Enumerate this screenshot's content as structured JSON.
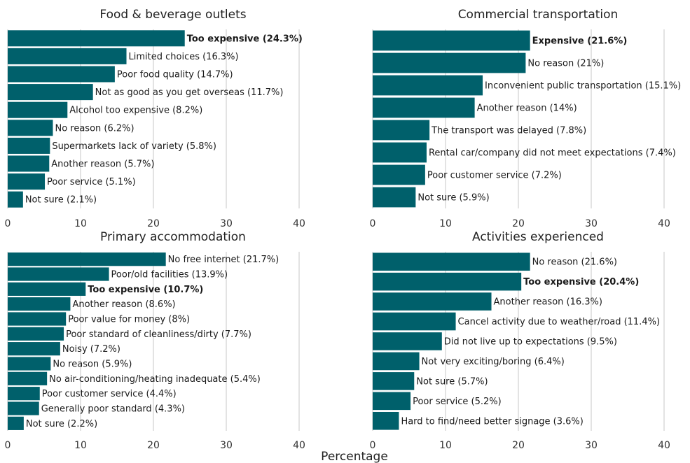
{
  "chart_data": [
    {
      "type": "bar",
      "orientation": "horizontal",
      "title": "Food & beverage outlets",
      "xlim": [
        0,
        40
      ],
      "xticks": [
        0,
        10,
        20,
        30,
        40
      ],
      "grid": true,
      "bar_color": "#00606B",
      "categories": [
        "Too expensive (24.3%)",
        "Limited choices (16.3%)",
        "Poor food quality (14.7%)",
        "Not as good as you get overseas (11.7%)",
        "Alcohol too expensive (8.2%)",
        "No reason (6.2%)",
        "Supermarkets lack of variety (5.8%)",
        "Another reason (5.7%)",
        "Poor service (5.1%)",
        "Not sure (2.1%)"
      ],
      "values": [
        24.3,
        16.3,
        14.7,
        11.7,
        8.2,
        6.2,
        5.8,
        5.7,
        5.1,
        2.1
      ],
      "bold": [
        true,
        false,
        false,
        false,
        false,
        false,
        false,
        false,
        false,
        false
      ]
    },
    {
      "type": "bar",
      "orientation": "horizontal",
      "title": "Commercial transportation",
      "xlim": [
        0,
        40
      ],
      "xticks": [
        0,
        10,
        20,
        30,
        40
      ],
      "grid": true,
      "bar_color": "#00606B",
      "categories": [
        "Expensive (21.6%)",
        "No reason (21%)",
        "Inconvenient public transportation (15.1%)",
        "Another reason (14%)",
        "The transport was delayed (7.8%)",
        "Rental car/company did not meet expectations (7.4%)",
        "Poor customer service (7.2%)",
        "Not sure (5.9%)"
      ],
      "values": [
        21.6,
        21,
        15.1,
        14,
        7.8,
        7.4,
        7.2,
        5.9
      ],
      "bold": [
        true,
        false,
        false,
        false,
        false,
        false,
        false,
        false
      ]
    },
    {
      "type": "bar",
      "orientation": "horizontal",
      "title": "Primary accommodation",
      "xlim": [
        0,
        40
      ],
      "xticks": [
        0,
        10,
        20,
        30,
        40
      ],
      "grid": true,
      "bar_color": "#00606B",
      "categories": [
        "No free internet (21.7%)",
        "Poor/old facilities (13.9%)",
        "Too expensive (10.7%)",
        "Another reason (8.6%)",
        "Poor value for money (8%)",
        "Poor standard of cleanliness/dirty (7.7%)",
        "Noisy (7.2%)",
        "No reason (5.9%)",
        "No air-conditioning/heating inadequate (5.4%)",
        "Poor customer service (4.4%)",
        "Generally poor standard (4.3%)",
        "Not sure (2.2%)"
      ],
      "values": [
        21.7,
        13.9,
        10.7,
        8.6,
        8,
        7.7,
        7.2,
        5.9,
        5.4,
        4.4,
        4.3,
        2.2
      ],
      "bold": [
        false,
        false,
        true,
        false,
        false,
        false,
        false,
        false,
        false,
        false,
        false,
        false
      ]
    },
    {
      "type": "bar",
      "orientation": "horizontal",
      "title": "Activities experienced",
      "xlim": [
        0,
        40
      ],
      "xticks": [
        0,
        10,
        20,
        30,
        40
      ],
      "grid": true,
      "bar_color": "#00606B",
      "categories": [
        "No reason (21.6%)",
        "Too expensive (20.4%)",
        "Another reason (16.3%)",
        "Cancel activity due to weather/road (11.4%)",
        "Did not live up to expectations (9.5%)",
        "Not very exciting/boring (6.4%)",
        "Not sure (5.7%)",
        "Poor service (5.2%)",
        "Hard to find/need better signage (3.6%)"
      ],
      "values": [
        21.6,
        20.4,
        16.3,
        11.4,
        9.5,
        6.4,
        5.7,
        5.2,
        3.6
      ],
      "bold": [
        false,
        true,
        false,
        false,
        false,
        false,
        false,
        false,
        false
      ]
    }
  ],
  "xlabel": "Percentage"
}
